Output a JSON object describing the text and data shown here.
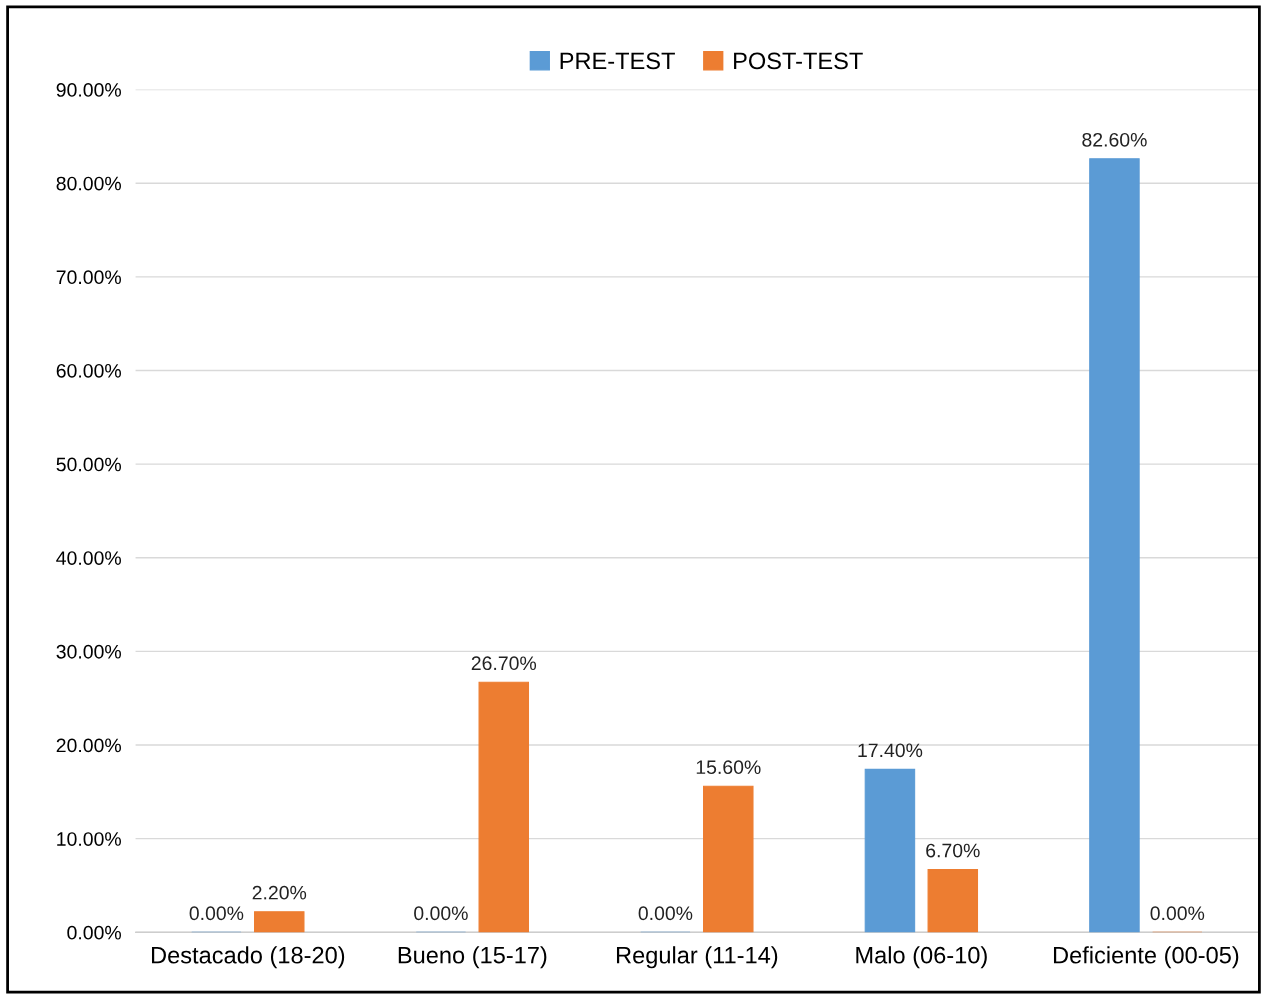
{
  "chart_data": {
    "type": "bar",
    "categories": [
      "Destacado (18-20)",
      "Bueno (15-17)",
      "Regular (11-14)",
      "Malo (06-10)",
      "Deficiente (00-05)"
    ],
    "series": [
      {
        "name": "PRE-TEST",
        "color": "#5b9bd5",
        "values": [
          0,
          0,
          0,
          17.4,
          82.6
        ],
        "value_labels": [
          "0.00%",
          "0.00%",
          "0.00%",
          "17.40%",
          "82.60%"
        ]
      },
      {
        "name": "POST-TEST",
        "color": "#ed7d31",
        "values": [
          2.2,
          26.7,
          15.6,
          6.7,
          0
        ],
        "value_labels": [
          "2.20%",
          "26.70%",
          "15.60%",
          "6.70%",
          "0.00%"
        ]
      }
    ],
    "ylim": [
      0,
      90
    ],
    "yticks": [
      {
        "value": 0,
        "label": "0.00%"
      },
      {
        "value": 10,
        "label": "10.00%"
      },
      {
        "value": 20,
        "label": "20.00%"
      },
      {
        "value": 30,
        "label": "30.00%"
      },
      {
        "value": 40,
        "label": "40.00%"
      },
      {
        "value": 50,
        "label": "50.00%"
      },
      {
        "value": 60,
        "label": "60.00%"
      },
      {
        "value": 70,
        "label": "70.00%"
      },
      {
        "value": 80,
        "label": "80.00%"
      },
      {
        "value": 90,
        "label": "90.00%"
      }
    ],
    "grid": "y",
    "legend": "top"
  }
}
